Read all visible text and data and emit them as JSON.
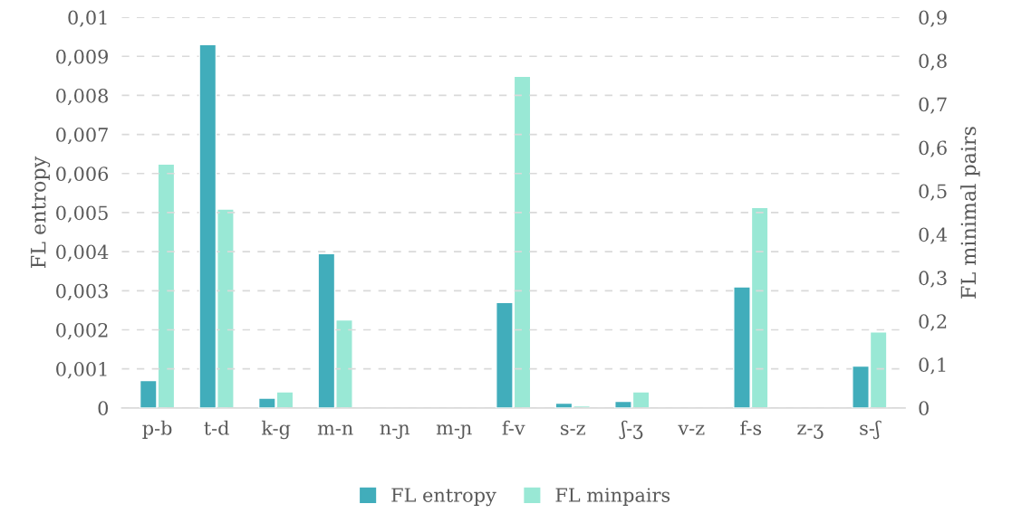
{
  "chart_data": {
    "type": "bar",
    "categories": [
      "p-b",
      "t-d",
      "k-g",
      "m-n",
      "n-ɲ",
      "m-ɲ",
      "f-v",
      "s-z",
      "ʃ-ʒ",
      "v-z",
      "f-s",
      "z-ʒ",
      "s-ʃ"
    ],
    "series": [
      {
        "name": "FL entropy",
        "color": "#41adbb",
        "values": [
          0.0007,
          0.0093,
          0.00025,
          0.00395,
          null,
          null,
          0.0027,
          0.00012,
          0.00017,
          null,
          0.0031,
          null,
          0.00107
        ]
      },
      {
        "name": "FL minpairs",
        "color": "#99e8d5",
        "axis": "y2",
        "values": [
          0.562,
          0.458,
          0.037,
          0.203,
          null,
          null,
          0.764,
          0.005,
          0.037,
          null,
          0.462,
          null,
          0.175
        ]
      }
    ],
    "ylabel": "FL entropy",
    "y2label": "FL minimal pairs",
    "ylim": [
      0,
      0.01
    ],
    "yticks": [
      0,
      {
        "value": 0.001,
        "label": "0,001"
      },
      {
        "value": 0.002,
        "label": "0,002"
      },
      {
        "value": 0.003,
        "label": "0,003"
      },
      {
        "value": 0.004,
        "label": "0,004"
      },
      {
        "value": 0.005,
        "label": "0,005"
      },
      {
        "value": 0.006,
        "label": "0,006"
      },
      {
        "value": 0.007,
        "label": "0,007"
      },
      {
        "value": 0.008,
        "label": "0,008"
      },
      {
        "value": 0.009,
        "label": "0,009"
      },
      {
        "value": 0.01,
        "label": "0,01"
      }
    ],
    "y2lim": [
      0,
      0.9
    ],
    "y2ticks": [
      0,
      {
        "value": 0.1,
        "label": "0,1"
      },
      {
        "value": 0.2,
        "label": "0,2"
      },
      {
        "value": 0.3,
        "label": "0,3"
      },
      {
        "value": 0.4,
        "label": "0,4"
      },
      {
        "value": 0.5,
        "label": "0,5"
      },
      {
        "value": 0.6,
        "label": "0,6"
      },
      {
        "value": 0.7,
        "label": "0,7"
      },
      {
        "value": 0.8,
        "label": "0,8"
      },
      {
        "value": 0.9,
        "label": "0,9"
      }
    ],
    "grid": "y",
    "legend": "bottom"
  }
}
